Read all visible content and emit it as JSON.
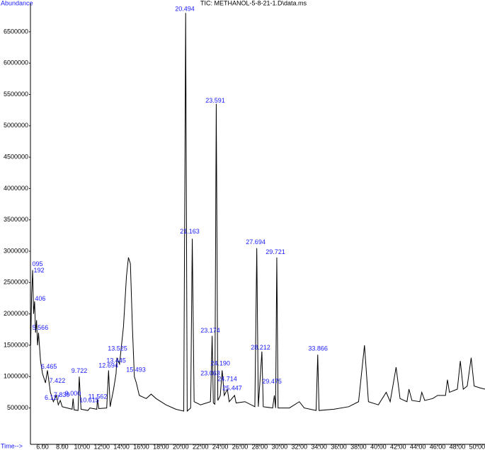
{
  "chart_data": {
    "type": "line",
    "title": "TIC: METHANOL-5-8-21-1.D\\data.ms",
    "y_label": "Abundance",
    "x_label": "Time-->",
    "xlim": [
      4.78,
      50.8
    ],
    "ylim": [
      -80000,
      6950000
    ],
    "xticks": [
      {
        "value": 6,
        "label": "6.00"
      },
      {
        "value": 8,
        "label": "8.00"
      },
      {
        "value": 10,
        "label": "10.00"
      },
      {
        "value": 12,
        "label": "12.00"
      },
      {
        "value": 14,
        "label": "14.00"
      },
      {
        "value": 16,
        "label": "16.00"
      },
      {
        "value": 18,
        "label": "18.00"
      },
      {
        "value": 20,
        "label": "20.00"
      },
      {
        "value": 22,
        "label": "22.00"
      },
      {
        "value": 24,
        "label": "24.00"
      },
      {
        "value": 26,
        "label": "26.00"
      },
      {
        "value": 28,
        "label": "28.00"
      },
      {
        "value": 30,
        "label": "30.00"
      },
      {
        "value": 32,
        "label": "32.00"
      },
      {
        "value": 34,
        "label": "34.00"
      },
      {
        "value": 36,
        "label": "36.00"
      },
      {
        "value": 38,
        "label": "38.00"
      },
      {
        "value": 40,
        "label": "40.00"
      },
      {
        "value": 42,
        "label": "42.00"
      },
      {
        "value": 44,
        "label": "44.00"
      },
      {
        "value": 46,
        "label": "46.00"
      },
      {
        "value": 48,
        "label": "48.00"
      },
      {
        "value": 50,
        "label": "50.00"
      }
    ],
    "yticks": [
      500000,
      1000000,
      1500000,
      2000000,
      2500000,
      3000000,
      3500000,
      4000000,
      4500000,
      5000000,
      5500000,
      6000000,
      6500000
    ],
    "series": [
      {
        "name": "TIC",
        "color": "#000000",
        "x": [
          4.8,
          4.9,
          5.0,
          5.1,
          5.2,
          5.3,
          5.4,
          5.5,
          5.6,
          5.8,
          6.0,
          6.3,
          6.5,
          6.8,
          7.1,
          7.4,
          7.6,
          7.8,
          8.0,
          8.5,
          9.0,
          9.1,
          9.2,
          9.6,
          9.72,
          9.9,
          10.6,
          10.8,
          11.5,
          11.56,
          11.7,
          12.5,
          12.69,
          12.85,
          13.2,
          13.45,
          13.53,
          13.8,
          14.2,
          14.5,
          14.7,
          14.9,
          15.1,
          15.3,
          15.5,
          15.8,
          16.5,
          17.0,
          17.5,
          18.5,
          19.5,
          20.3,
          20.494,
          20.65,
          21.0,
          21.163,
          21.35,
          22.0,
          23.0,
          23.063,
          23.174,
          23.3,
          23.45,
          23.591,
          23.75,
          24.0,
          24.19,
          24.4,
          24.714,
          24.9,
          25.447,
          25.6,
          26.5,
          27.5,
          27.694,
          27.85,
          28.212,
          28.35,
          29.3,
          29.475,
          29.6,
          29.721,
          29.85,
          31.0,
          32.0,
          32.5,
          33.7,
          33.866,
          34.0,
          35.5,
          37.0,
          38.0,
          38.6,
          39.0,
          40.0,
          40.8,
          41.2,
          41.8,
          42.2,
          42.9,
          43.1,
          43.4,
          44.2,
          44.4,
          44.7,
          45.5,
          46.0,
          46.8,
          47.0,
          47.2,
          48.0,
          48.3,
          48.6,
          49.0,
          49.4,
          49.7,
          50.3,
          50.8
        ],
        "values": [
          1500000,
          2300000,
          2700000,
          2000000,
          2200000,
          1700000,
          1900000,
          1500000,
          1700000,
          1250000,
          1050000,
          900000,
          1100000,
          750000,
          600000,
          700000,
          550000,
          620000,
          520000,
          500000,
          480000,
          650000,
          470000,
          460000,
          1000000,
          480000,
          460000,
          500000,
          480000,
          640000,
          490000,
          500000,
          1100000,
          520000,
          800000,
          1050000,
          1300000,
          1200000,
          1800000,
          2600000,
          2900000,
          2800000,
          1800000,
          1000000,
          900000,
          700000,
          650000,
          720000,
          650000,
          550000,
          480000,
          450000,
          6800000,
          450000,
          500000,
          3200000,
          600000,
          550000,
          600000,
          900000,
          1650000,
          580000,
          560000,
          5350000,
          620000,
          700000,
          1100000,
          700000,
          800000,
          600000,
          700000,
          580000,
          600000,
          520000,
          3050000,
          520000,
          1400000,
          520000,
          500000,
          700000,
          500000,
          2900000,
          500000,
          500000,
          600000,
          500000,
          460000,
          1350000,
          460000,
          480000,
          520000,
          600000,
          1500000,
          600000,
          550000,
          750000,
          600000,
          1150000,
          650000,
          600000,
          800000,
          620000,
          600000,
          750000,
          620000,
          650000,
          700000,
          700000,
          950000,
          750000,
          800000,
          1250000,
          800000,
          850000,
          1300000,
          850000,
          820000,
          800000
        ]
      }
    ],
    "annotations": [
      {
        "text": "095",
        "x": 5.5,
        "y": 2789000
      },
      {
        "text": "192",
        "x": 5.64,
        "y": 2688000
      },
      {
        "text": "406",
        "x": 5.78,
        "y": 2237000
      },
      {
        "text": "5.566",
        "x": 5.78,
        "y": 1774000
      },
      {
        "text": "6.465",
        "x": 6.65,
        "y": 1154000
      },
      {
        "text": "7.422",
        "x": 7.5,
        "y": 928000
      },
      {
        "text": "6.117",
        "x": 7.0,
        "y": 657000
      },
      {
        "text": "7.839",
        "x": 7.94,
        "y": 702000
      },
      {
        "text": "9.000",
        "x": 9.08,
        "y": 725000
      },
      {
        "text": "9.722",
        "x": 9.73,
        "y": 1086000
      },
      {
        "text": "10.615",
        "x": 10.73,
        "y": 618000
      },
      {
        "text": "11.562",
        "x": 11.59,
        "y": 674000
      },
      {
        "text": "12.694",
        "x": 12.67,
        "y": 1170000
      },
      {
        "text": "13.445",
        "x": 13.46,
        "y": 1251000
      },
      {
        "text": "13.525",
        "x": 13.6,
        "y": 1442000
      },
      {
        "text": "15.493",
        "x": 15.46,
        "y": 1104000
      },
      {
        "text": "20.494",
        "x": 20.41,
        "y": 6861000
      },
      {
        "text": "21.163",
        "x": 20.91,
        "y": 3308000
      },
      {
        "text": "23.591",
        "x": 23.49,
        "y": 5395000
      },
      {
        "text": "23.174",
        "x": 22.99,
        "y": 1729000
      },
      {
        "text": "24.190",
        "x": 24.0,
        "y": 1206000
      },
      {
        "text": "23.063",
        "x": 22.99,
        "y": 1048000
      },
      {
        "text": "24.714",
        "x": 24.71,
        "y": 958000
      },
      {
        "text": "25.447",
        "x": 25.21,
        "y": 811000
      },
      {
        "text": "27.694",
        "x": 27.58,
        "y": 3139000
      },
      {
        "text": "28.212",
        "x": 28.08,
        "y": 1458000
      },
      {
        "text": "29.475",
        "x": 29.23,
        "y": 917000
      },
      {
        "text": "29.721",
        "x": 29.58,
        "y": 2981000
      },
      {
        "text": "33.866",
        "x": 33.89,
        "y": 1442000
      }
    ]
  }
}
